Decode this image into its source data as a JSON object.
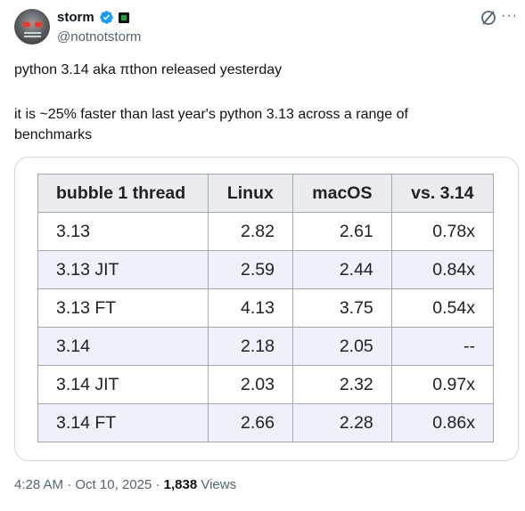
{
  "author": {
    "display_name": "storm",
    "handle": "@notnotstorm",
    "avatar_icon": "robot-skull-avatar",
    "verified_icon": "verified-badge-icon",
    "affiliate_icon": "square-badge-icon",
    "accent_color": "#1d9bf0"
  },
  "tweet": {
    "line1": "python 3.14 aka πthon released yesterday",
    "line2": "it is ~25% faster than last year's python 3.13 across a range of",
    "line3": "benchmarks"
  },
  "table": {
    "headers": [
      "bubble 1 thread",
      "Linux",
      "macOS",
      "vs. 3.14"
    ],
    "rows": [
      [
        "3.13",
        "2.82",
        "2.61",
        "0.78x"
      ],
      [
        "3.13 JIT",
        "2.59",
        "2.44",
        "0.84x"
      ],
      [
        "3.13 FT",
        "4.13",
        "3.75",
        "0.54x"
      ],
      [
        "3.14",
        "2.18",
        "2.05",
        "--"
      ],
      [
        "3.14 JIT",
        "2.03",
        "2.32",
        "0.97x"
      ],
      [
        "3.14 FT",
        "2.66",
        "2.28",
        "0.86x"
      ]
    ]
  },
  "footer": {
    "time": "4:28 AM",
    "sep1": " · ",
    "date": "Oct 10, 2025",
    "sep2": " · ",
    "views_count": "1,838",
    "views_label": " Views"
  },
  "header_actions": {
    "grok_icon": "slash-circle-icon",
    "more_icon": "more-dots-icon",
    "more_label": "···"
  }
}
